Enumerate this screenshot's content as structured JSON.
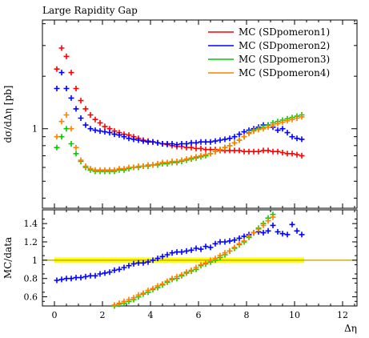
{
  "chart_data": [
    {
      "panel": "main",
      "type": "scatter",
      "title": "Large Rapidity Gap",
      "xlabel": "",
      "ylabel": "dσ/dΔη [pb]",
      "y_scale": "log",
      "xlim": [
        -0.5,
        12.6
      ],
      "ylim": [
        0.35,
        4.2
      ],
      "yticks": [
        {
          "value": 1,
          "label": "1"
        }
      ],
      "legend_position": "top-right",
      "series": [
        {
          "name": "MC (SDpomeron1)",
          "color": "#ff0000",
          "x": [
            0.1,
            0.3,
            0.5,
            0.7,
            0.9,
            1.1,
            1.3,
            1.5,
            1.7,
            1.9,
            2.1,
            2.3,
            2.5,
            2.7,
            2.9,
            3.1,
            3.3,
            3.5,
            3.7,
            3.9,
            4.1,
            4.3,
            4.5,
            4.7,
            4.9,
            5.1,
            5.3,
            5.5,
            5.7,
            5.9,
            6.1,
            6.3,
            6.5,
            6.7,
            6.9,
            7.1,
            7.3,
            7.5,
            7.7,
            7.9,
            8.1,
            8.3,
            8.5,
            8.7,
            8.9,
            9.1,
            9.3,
            9.5,
            9.7,
            9.9,
            10.1,
            10.3
          ],
          "y": [
            2.2,
            2.9,
            2.6,
            2.1,
            1.7,
            1.45,
            1.3,
            1.2,
            1.13,
            1.08,
            1.03,
            1.0,
            0.97,
            0.95,
            0.93,
            0.92,
            0.9,
            0.88,
            0.86,
            0.85,
            0.84,
            0.83,
            0.82,
            0.81,
            0.8,
            0.79,
            0.79,
            0.78,
            0.78,
            0.77,
            0.77,
            0.76,
            0.76,
            0.76,
            0.75,
            0.75,
            0.75,
            0.75,
            0.75,
            0.74,
            0.74,
            0.74,
            0.74,
            0.75,
            0.75,
            0.74,
            0.74,
            0.73,
            0.72,
            0.72,
            0.71,
            0.7
          ]
        },
        {
          "name": "MC (SDpomeron2)",
          "color": "#0000ff",
          "x": [
            0.1,
            0.3,
            0.5,
            0.7,
            0.9,
            1.1,
            1.3,
            1.5,
            1.7,
            1.9,
            2.1,
            2.3,
            2.5,
            2.7,
            2.9,
            3.1,
            3.3,
            3.5,
            3.7,
            3.9,
            4.1,
            4.3,
            4.5,
            4.7,
            4.9,
            5.1,
            5.3,
            5.5,
            5.7,
            5.9,
            6.1,
            6.3,
            6.5,
            6.7,
            6.9,
            7.1,
            7.3,
            7.5,
            7.7,
            7.9,
            8.1,
            8.3,
            8.5,
            8.7,
            8.9,
            9.1,
            9.3,
            9.5,
            9.7,
            9.9,
            10.1,
            10.3
          ],
          "y": [
            1.7,
            2.1,
            1.7,
            1.5,
            1.3,
            1.15,
            1.05,
            1.0,
            0.98,
            0.97,
            0.96,
            0.95,
            0.93,
            0.92,
            0.9,
            0.88,
            0.87,
            0.86,
            0.85,
            0.84,
            0.84,
            0.83,
            0.82,
            0.82,
            0.82,
            0.81,
            0.82,
            0.82,
            0.83,
            0.83,
            0.84,
            0.84,
            0.84,
            0.85,
            0.86,
            0.87,
            0.88,
            0.9,
            0.93,
            0.96,
            0.98,
            1.0,
            1.02,
            1.05,
            1.05,
            1.02,
            0.98,
            1.0,
            0.95,
            0.9,
            0.88,
            0.87
          ]
        },
        {
          "name": "MC (SDpomeron3)",
          "color": "#00cc00",
          "x": [
            0.1,
            0.3,
            0.5,
            0.7,
            0.9,
            1.1,
            1.3,
            1.5,
            1.7,
            1.9,
            2.1,
            2.3,
            2.5,
            2.7,
            2.9,
            3.1,
            3.3,
            3.5,
            3.7,
            3.9,
            4.1,
            4.3,
            4.5,
            4.7,
            4.9,
            5.1,
            5.3,
            5.5,
            5.7,
            5.9,
            6.1,
            6.3,
            6.5,
            6.7,
            6.9,
            7.1,
            7.3,
            7.5,
            7.7,
            7.9,
            8.1,
            8.3,
            8.5,
            8.7,
            8.9,
            9.1,
            9.3,
            9.5,
            9.7,
            9.9,
            10.1,
            10.3
          ],
          "y": [
            0.78,
            0.9,
            1.0,
            0.82,
            0.72,
            0.65,
            0.6,
            0.58,
            0.57,
            0.57,
            0.57,
            0.57,
            0.57,
            0.58,
            0.58,
            0.59,
            0.6,
            0.6,
            0.61,
            0.61,
            0.62,
            0.62,
            0.63,
            0.63,
            0.64,
            0.64,
            0.65,
            0.66,
            0.67,
            0.68,
            0.69,
            0.7,
            0.72,
            0.74,
            0.76,
            0.78,
            0.8,
            0.83,
            0.86,
            0.9,
            0.95,
            0.98,
            1.0,
            1.02,
            1.05,
            1.08,
            1.1,
            1.12,
            1.14,
            1.16,
            1.18,
            1.2
          ]
        },
        {
          "name": "MC (SDpomeron4)",
          "color": "#ff8000",
          "x": [
            0.1,
            0.3,
            0.5,
            0.7,
            0.9,
            1.1,
            1.3,
            1.5,
            1.7,
            1.9,
            2.1,
            2.3,
            2.5,
            2.7,
            2.9,
            3.1,
            3.3,
            3.5,
            3.7,
            3.9,
            4.1,
            4.3,
            4.5,
            4.7,
            4.9,
            5.1,
            5.3,
            5.5,
            5.7,
            5.9,
            6.1,
            6.3,
            6.5,
            6.7,
            6.9,
            7.1,
            7.3,
            7.5,
            7.7,
            7.9,
            8.1,
            8.3,
            8.5,
            8.7,
            8.9,
            9.1,
            9.3,
            9.5,
            9.7,
            9.9,
            10.1,
            10.3
          ],
          "y": [
            0.9,
            1.1,
            1.2,
            1.0,
            0.78,
            0.66,
            0.61,
            0.59,
            0.58,
            0.58,
            0.58,
            0.58,
            0.58,
            0.59,
            0.59,
            0.6,
            0.6,
            0.61,
            0.61,
            0.62,
            0.62,
            0.63,
            0.64,
            0.64,
            0.65,
            0.65,
            0.66,
            0.67,
            0.68,
            0.69,
            0.7,
            0.71,
            0.72,
            0.74,
            0.76,
            0.78,
            0.8,
            0.83,
            0.86,
            0.9,
            0.94,
            0.97,
            0.99,
            1.0,
            1.02,
            1.05,
            1.07,
            1.09,
            1.11,
            1.13,
            1.15,
            1.17
          ]
        }
      ]
    },
    {
      "panel": "ratio",
      "type": "scatter",
      "xlabel": "Δη",
      "ylabel": "MC/data",
      "xlim": [
        -0.5,
        12.6
      ],
      "ylim": [
        0.5,
        1.55
      ],
      "xticks": [
        0,
        2,
        4,
        6,
        8,
        10,
        12
      ],
      "yticks": [
        {
          "value": 0.6,
          "label": "0.6"
        },
        {
          "value": 0.8,
          "label": "0.8"
        },
        {
          "value": 1.0,
          "label": "1"
        },
        {
          "value": 1.2,
          "label": "1.2"
        },
        {
          "value": 1.4,
          "label": "1.4"
        }
      ],
      "reference_line": 1.0,
      "reference_band": {
        "x": [
          0,
          10.4
        ],
        "y": [
          0.97,
          1.03
        ],
        "color": "#ffff00"
      },
      "series": [
        {
          "name": "MC (SDpomeron2)",
          "color": "#0000ff",
          "x": [
            0.1,
            0.3,
            0.5,
            0.7,
            0.9,
            1.1,
            1.3,
            1.5,
            1.7,
            1.9,
            2.1,
            2.3,
            2.5,
            2.7,
            2.9,
            3.1,
            3.3,
            3.5,
            3.7,
            3.9,
            4.1,
            4.3,
            4.5,
            4.7,
            4.9,
            5.1,
            5.3,
            5.5,
            5.7,
            5.9,
            6.1,
            6.3,
            6.5,
            6.7,
            6.9,
            7.1,
            7.3,
            7.5,
            7.7,
            7.9,
            8.1,
            8.3,
            8.5,
            8.7,
            8.9,
            9.1,
            9.3,
            9.5,
            9.7,
            9.9,
            10.1,
            10.3
          ],
          "y": [
            0.78,
            0.79,
            0.8,
            0.8,
            0.81,
            0.81,
            0.82,
            0.83,
            0.83,
            0.85,
            0.86,
            0.87,
            0.89,
            0.9,
            0.92,
            0.94,
            0.96,
            0.97,
            0.97,
            0.98,
            1.0,
            1.02,
            1.04,
            1.06,
            1.08,
            1.09,
            1.09,
            1.1,
            1.11,
            1.13,
            1.12,
            1.15,
            1.14,
            1.18,
            1.2,
            1.2,
            1.21,
            1.22,
            1.24,
            1.26,
            1.28,
            1.3,
            1.31,
            1.3,
            1.32,
            1.38,
            1.31,
            1.29,
            1.28,
            1.39,
            1.32,
            1.28
          ]
        },
        {
          "name": "MC (SDpomeron3)",
          "color": "#00cc00",
          "x": [
            2.5,
            2.7,
            2.9,
            3.1,
            3.3,
            3.5,
            3.7,
            3.9,
            4.1,
            4.3,
            4.5,
            4.7,
            4.9,
            5.1,
            5.3,
            5.5,
            5.7,
            5.9,
            6.1,
            6.3,
            6.5,
            6.7,
            6.9,
            7.1,
            7.3,
            7.5,
            7.7,
            7.9,
            8.1,
            8.3,
            8.5,
            8.7,
            8.9,
            9.1
          ],
          "y": [
            0.5,
            0.52,
            0.53,
            0.55,
            0.57,
            0.6,
            0.63,
            0.65,
            0.68,
            0.7,
            0.73,
            0.76,
            0.79,
            0.8,
            0.83,
            0.86,
            0.88,
            0.9,
            0.94,
            0.96,
            0.98,
            1.0,
            1.03,
            1.06,
            1.1,
            1.13,
            1.17,
            1.2,
            1.25,
            1.3,
            1.35,
            1.4,
            1.46,
            1.5
          ]
        },
        {
          "name": "MC (SDpomeron4)",
          "color": "#ff8000",
          "x": [
            2.5,
            2.7,
            2.9,
            3.1,
            3.3,
            3.5,
            3.7,
            3.9,
            4.1,
            4.3,
            4.5,
            4.7,
            4.9,
            5.1,
            5.3,
            5.5,
            5.7,
            5.9,
            6.1,
            6.3,
            6.5,
            6.7,
            6.9,
            7.1,
            7.3,
            7.5,
            7.7,
            7.9,
            8.1,
            8.3,
            8.5,
            8.7,
            8.9,
            9.1
          ],
          "y": [
            0.51,
            0.53,
            0.55,
            0.57,
            0.59,
            0.62,
            0.64,
            0.67,
            0.69,
            0.72,
            0.74,
            0.77,
            0.8,
            0.82,
            0.84,
            0.87,
            0.89,
            0.92,
            0.95,
            0.97,
            1.0,
            1.02,
            1.05,
            1.08,
            1.1,
            1.14,
            1.18,
            1.21,
            1.26,
            1.3,
            1.34,
            1.38,
            1.43,
            1.47
          ]
        }
      ]
    }
  ]
}
